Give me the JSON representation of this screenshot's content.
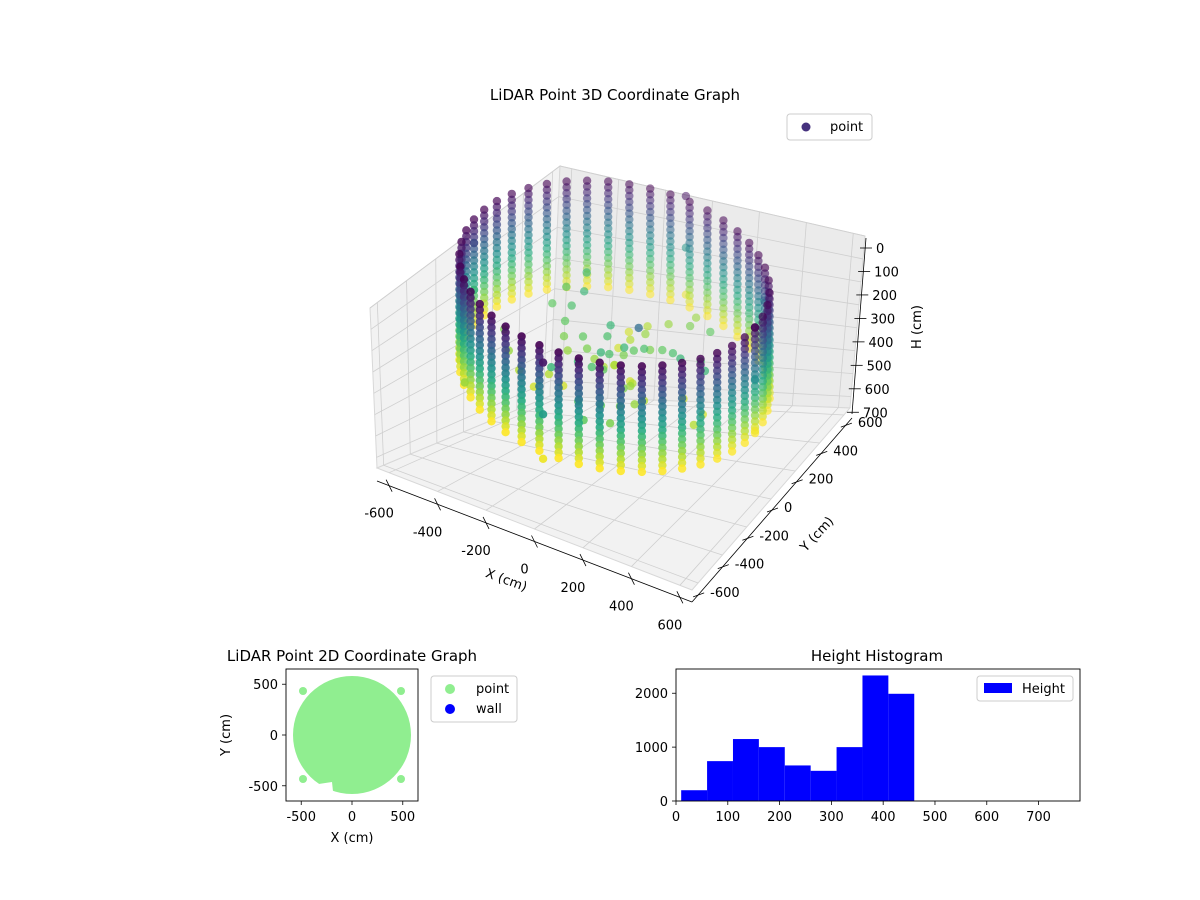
{
  "chart_data": [
    {
      "type": "scatter",
      "projection": "3d",
      "title": "LiDAR Point 3D Coordinate Graph",
      "xlabel": "X (cm)",
      "ylabel": "Y (cm)",
      "zlabel": "H (cm)",
      "xlim": [
        -650,
        650
      ],
      "ylim": [
        -650,
        650
      ],
      "zlim": [
        750,
        0
      ],
      "zaxis_inverted": true,
      "xticks": [
        -600,
        -400,
        -200,
        0,
        200,
        400,
        600
      ],
      "yticks": [
        -600,
        -400,
        -200,
        0,
        200,
        400,
        600
      ],
      "zticks": [
        0,
        100,
        200,
        300,
        400,
        500,
        600,
        700
      ],
      "colormap": "viridis",
      "legend": {
        "placement": "upper-right",
        "entries": [
          {
            "label": "point",
            "color": "#46327e"
          }
        ]
      },
      "grid": true,
      "series": [
        {
          "name": "point",
          "shape": "cylindrical wall scan (ring of vertical columns)",
          "ring_radius_cm": 580,
          "columns": 46,
          "height_range_cm": [
            0,
            450
          ],
          "color_by": "height",
          "sample_points": [
            {
              "x": 580,
              "y": 0,
              "h": 0
            },
            {
              "x": 580,
              "y": 0,
              "h": 220
            },
            {
              "x": 580,
              "y": 0,
              "h": 440
            },
            {
              "x": 0,
              "y": 580,
              "h": 20
            },
            {
              "x": 0,
              "y": 580,
              "h": 240
            },
            {
              "x": 0,
              "y": 580,
              "h": 440
            },
            {
              "x": -580,
              "y": 0,
              "h": 100
            },
            {
              "x": -580,
              "y": 0,
              "h": 300
            },
            {
              "x": 0,
              "y": -580,
              "h": 30
            },
            {
              "x": 0,
              "y": -580,
              "h": 250
            },
            {
              "x": 0,
              "y": -580,
              "h": 440
            },
            {
              "x": 410,
              "y": 410,
              "h": 200
            },
            {
              "x": -410,
              "y": -410,
              "h": 380
            },
            {
              "x": 0,
              "y": 0,
              "h": 390
            },
            {
              "x": 120,
              "y": -40,
              "h": 160
            }
          ]
        }
      ]
    },
    {
      "type": "scatter",
      "title": "LiDAR Point 2D Coordinate Graph",
      "xlabel": "X (cm)",
      "ylabel": "Y (cm)",
      "xlim": [
        -650,
        650
      ],
      "ylim": [
        -650,
        650
      ],
      "xticks": [
        -500,
        0,
        500
      ],
      "yticks": [
        -500,
        0,
        500
      ],
      "legend": {
        "placement": "outside-right",
        "entries": [
          {
            "label": "point",
            "color": "#90ee90"
          },
          {
            "label": "wall",
            "color": "#0000ff"
          }
        ]
      },
      "series": [
        {
          "name": "point",
          "color": "#90ee90",
          "shape": "filled disc of radius ~580 cm with a notch in the lower-left"
        },
        {
          "name": "wall",
          "color": "#0000ff",
          "points": []
        }
      ]
    },
    {
      "type": "bar",
      "subtype": "histogram",
      "title": "Height Histogram",
      "xlim": [
        0,
        780
      ],
      "ylim": [
        0,
        2450
      ],
      "xticks": [
        0,
        100,
        200,
        300,
        400,
        500,
        600,
        700
      ],
      "yticks": [
        0,
        1000,
        2000
      ],
      "color": "#0000ff",
      "legend": {
        "placement": "upper-right",
        "entries": [
          {
            "label": "Height",
            "color": "#0000ff"
          }
        ]
      },
      "series": [
        {
          "name": "Height",
          "bins": [
            {
              "x0": 10,
              "x1": 60,
              "count": 200
            },
            {
              "x0": 60,
              "x1": 110,
              "count": 740
            },
            {
              "x0": 110,
              "x1": 160,
              "count": 1150
            },
            {
              "x0": 160,
              "x1": 210,
              "count": 1000
            },
            {
              "x0": 210,
              "x1": 260,
              "count": 660
            },
            {
              "x0": 260,
              "x1": 310,
              "count": 560
            },
            {
              "x0": 310,
              "x1": 360,
              "count": 1000
            },
            {
              "x0": 360,
              "x1": 410,
              "count": 2330
            },
            {
              "x0": 410,
              "x1": 460,
              "count": 1990
            }
          ]
        }
      ]
    }
  ]
}
